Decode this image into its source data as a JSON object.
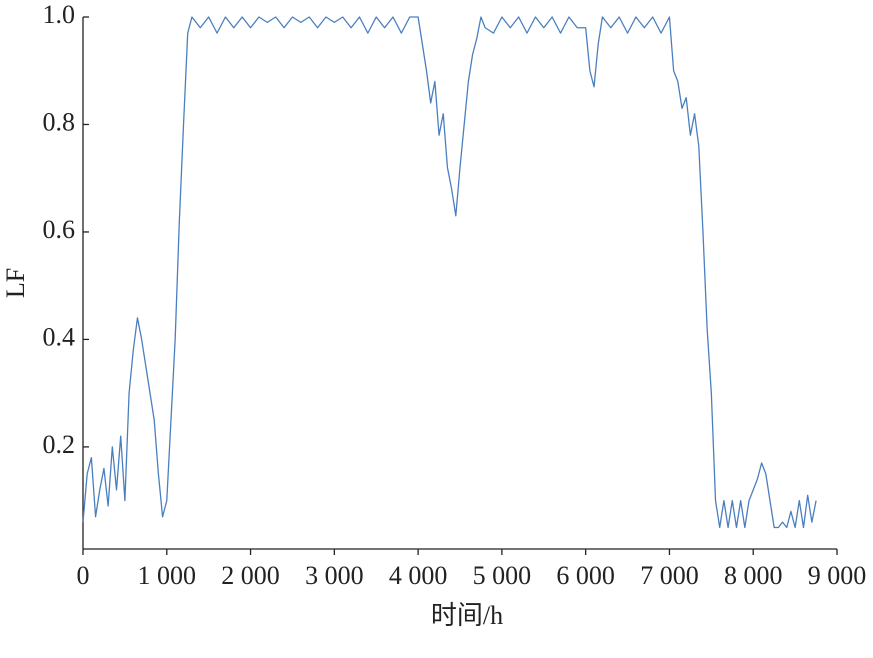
{
  "chart_data": {
    "type": "line",
    "x_label": "时间/h",
    "y_label": "LF",
    "color": "#4a7fbf",
    "x": [
      0,
      50,
      100,
      150,
      200,
      250,
      300,
      350,
      400,
      450,
      500,
      550,
      600,
      650,
      700,
      750,
      800,
      850,
      900,
      950,
      1000,
      1050,
      1100,
      1150,
      1200,
      1250,
      1300,
      1400,
      1500,
      1600,
      1700,
      1800,
      1900,
      2000,
      2100,
      2200,
      2300,
      2400,
      2500,
      2600,
      2700,
      2800,
      2900,
      3000,
      3100,
      3200,
      3300,
      3400,
      3500,
      3600,
      3700,
      3800,
      3900,
      4000,
      4050,
      4100,
      4150,
      4200,
      4250,
      4300,
      4350,
      4400,
      4450,
      4500,
      4550,
      4600,
      4650,
      4700,
      4750,
      4800,
      4900,
      5000,
      5100,
      5200,
      5300,
      5400,
      5500,
      5600,
      5700,
      5800,
      5900,
      6000,
      6050,
      6100,
      6150,
      6200,
      6300,
      6400,
      6500,
      6600,
      6700,
      6800,
      6900,
      7000,
      7050,
      7100,
      7150,
      7200,
      7250,
      7300,
      7350,
      7400,
      7450,
      7500,
      7550,
      7600,
      7650,
      7700,
      7750,
      7800,
      7850,
      7900,
      7950,
      8000,
      8050,
      8100,
      8150,
      8200,
      8250,
      8300,
      8350,
      8400,
      8450,
      8500,
      8550,
      8600,
      8650,
      8700,
      8750
    ],
    "values": [
      0.06,
      0.15,
      0.18,
      0.07,
      0.12,
      0.16,
      0.09,
      0.2,
      0.12,
      0.22,
      0.1,
      0.3,
      0.38,
      0.44,
      0.4,
      0.35,
      0.3,
      0.25,
      0.15,
      0.07,
      0.1,
      0.25,
      0.4,
      0.62,
      0.8,
      0.97,
      1.0,
      0.98,
      1.0,
      0.97,
      1.0,
      0.98,
      1.0,
      0.98,
      1.0,
      0.99,
      1.0,
      0.98,
      1.0,
      0.99,
      1.0,
      0.98,
      1.0,
      0.99,
      1.0,
      0.98,
      1.0,
      0.97,
      1.0,
      0.98,
      1.0,
      0.97,
      1.0,
      1.0,
      0.95,
      0.9,
      0.84,
      0.88,
      0.78,
      0.82,
      0.72,
      0.68,
      0.63,
      0.72,
      0.8,
      0.88,
      0.93,
      0.96,
      1.0,
      0.98,
      0.97,
      1.0,
      0.98,
      1.0,
      0.97,
      1.0,
      0.98,
      1.0,
      0.97,
      1.0,
      0.98,
      0.98,
      0.9,
      0.87,
      0.95,
      1.0,
      0.98,
      1.0,
      0.97,
      1.0,
      0.98,
      1.0,
      0.97,
      1.0,
      0.9,
      0.88,
      0.83,
      0.85,
      0.78,
      0.82,
      0.76,
      0.6,
      0.42,
      0.3,
      0.1,
      0.05,
      0.1,
      0.05,
      0.1,
      0.05,
      0.1,
      0.05,
      0.1,
      0.12,
      0.14,
      0.17,
      0.15,
      0.1,
      0.05,
      0.05,
      0.06,
      0.05,
      0.08,
      0.05,
      0.1,
      0.05,
      0.11,
      0.06,
      0.1
    ],
    "xlim": [
      0,
      9000
    ],
    "xticks": [
      0,
      {
        "value": 1000,
        "label": "1 000"
      },
      {
        "value": 2000,
        "label": "2 000"
      },
      {
        "value": 3000,
        "label": "3 000"
      },
      {
        "value": 4000,
        "label": "4 000"
      },
      {
        "value": 5000,
        "label": "5 000"
      },
      {
        "value": 6000,
        "label": "6 000"
      },
      {
        "value": 7000,
        "label": "7 000"
      },
      {
        "value": 8000,
        "label": "8 000"
      },
      {
        "value": 9000,
        "label": "9 000"
      }
    ],
    "ylim": [
      0.01,
      1.0
    ],
    "yticks": [
      0.2,
      0.4,
      0.6,
      0.8,
      {
        "value": 1.0,
        "label": "1.0"
      }
    ]
  }
}
